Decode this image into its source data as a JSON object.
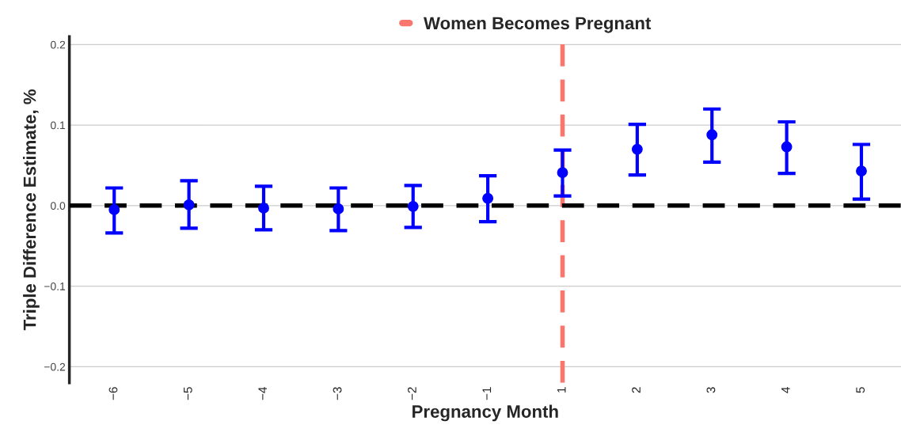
{
  "chart_data": {
    "type": "scatter",
    "xlabel": "Pregnancy Month",
    "ylabel": "Triple Difference Estimate, %",
    "categories": [
      "−6",
      "−5",
      "−4",
      "−3",
      "−2",
      "−1",
      "1",
      "2",
      "3",
      "4",
      "5"
    ],
    "series": [
      {
        "color": "#0000ff",
        "values": [
          -0.005,
          0.001,
          -0.003,
          -0.004,
          -0.001,
          0.009,
          0.041,
          0.07,
          0.088,
          0.073,
          0.043
        ],
        "errors": [
          [
            -0.034,
            0.022
          ],
          [
            -0.028,
            0.031
          ],
          [
            -0.03,
            0.024
          ],
          [
            -0.031,
            0.022
          ],
          [
            -0.027,
            0.025
          ],
          [
            -0.02,
            0.037
          ],
          [
            0.012,
            0.069
          ],
          [
            0.038,
            0.101
          ],
          [
            0.054,
            0.12
          ],
          [
            0.04,
            0.104
          ],
          [
            0.008,
            0.076
          ]
        ]
      }
    ],
    "ylim": [
      -0.22,
      0.21
    ],
    "yticks": [
      {
        "value": -0.2,
        "label": "−0.2"
      },
      {
        "value": -0.1,
        "label": "−0.1"
      },
      {
        "value": 0,
        "label": "0.0"
      },
      {
        "value": 0.1,
        "label": "0.1"
      },
      {
        "value": 0.2,
        "label": "0.2"
      }
    ],
    "ref_lines": [
      {
        "axis": "y",
        "value": 0,
        "color": "#000000",
        "line_style": "dashed"
      },
      {
        "axis": "x",
        "value": "1",
        "label": "Women Becomes Pregnant",
        "color": "#f8766d",
        "line_style": "dashed"
      }
    ],
    "grid": "y",
    "legend": "top",
    "marker": "circle"
  }
}
